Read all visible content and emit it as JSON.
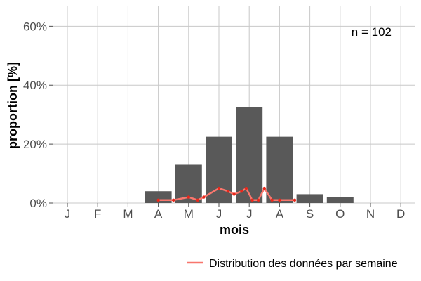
{
  "chart_data": {
    "type": "bar",
    "categories": [
      "J",
      "F",
      "M",
      "A",
      "M",
      "J",
      "J",
      "A",
      "S",
      "O",
      "N",
      "D"
    ],
    "values": [
      0,
      0,
      0,
      4,
      13,
      22.5,
      32.5,
      22.5,
      3,
      2,
      0,
      0
    ],
    "xlabel": "mois",
    "ylabel": "proportion [%]",
    "ylim": [
      0,
      67
    ],
    "yticks": [
      0,
      20,
      40,
      60
    ],
    "ytick_labels": [
      "0%",
      "20%",
      "40%",
      "60%"
    ],
    "grid": true,
    "annotation": "n = 102",
    "bar_color": "#595959",
    "line_series": {
      "name": "Distribution des données par semaine",
      "color": "#f8766d",
      "point_color": "#e8281b",
      "x": [
        3.0,
        3.5,
        4.0,
        4.3,
        4.5,
        5.0,
        5.3,
        5.5,
        5.75,
        5.9,
        6.1,
        6.3,
        6.5,
        6.75,
        7.0,
        7.5
      ],
      "y": [
        1,
        1,
        2,
        1,
        2,
        5,
        4,
        3,
        4,
        5,
        1,
        1,
        5,
        1,
        1,
        1
      ]
    },
    "legend_position": "bottom-right"
  }
}
